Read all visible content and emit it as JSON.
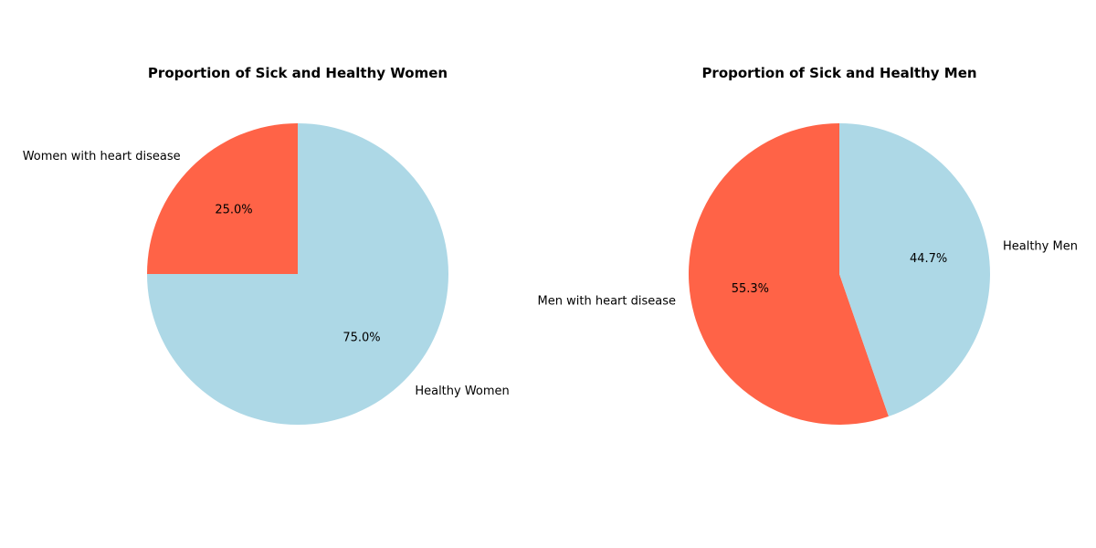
{
  "chart_data": [
    {
      "type": "pie",
      "title": "Proportion of Sick and Healthy Women",
      "categories": [
        "Women with heart disease",
        "Healthy Women"
      ],
      "values": [
        25.0,
        75.0
      ],
      "value_labels": [
        "25.0%",
        "75.0%"
      ],
      "colors": [
        "#ff6347",
        "#add8e6"
      ],
      "start_angle_deg": 90,
      "direction": "counterclockwise"
    },
    {
      "type": "pie",
      "title": "Proportion of Sick and Healthy Men",
      "categories": [
        "Men with heart disease",
        "Healthy Men"
      ],
      "values": [
        55.3,
        44.7
      ],
      "value_labels": [
        "55.3%",
        "44.7%"
      ],
      "colors": [
        "#ff6347",
        "#add8e6"
      ],
      "start_angle_deg": 90,
      "direction": "counterclockwise"
    }
  ]
}
